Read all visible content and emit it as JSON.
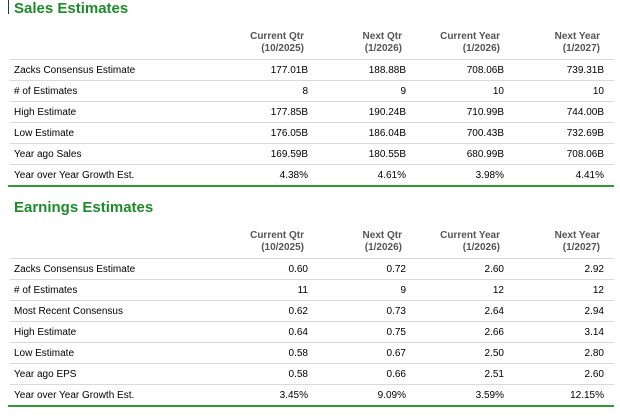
{
  "sales": {
    "title": "Sales Estimates",
    "headers": [
      {
        "line1": "Current Qtr",
        "line2": "(10/2025)"
      },
      {
        "line1": "Next Qtr",
        "line2": "(1/2026)"
      },
      {
        "line1": "Current Year",
        "line2": "(1/2026)"
      },
      {
        "line1": "Next Year",
        "line2": "(1/2027)"
      }
    ],
    "rows": [
      {
        "label": "Zacks Consensus Estimate",
        "values": [
          "177.01B",
          "188.88B",
          "708.06B",
          "739.31B"
        ]
      },
      {
        "label": "# of Estimates",
        "values": [
          "8",
          "9",
          "10",
          "10"
        ]
      },
      {
        "label": "High Estimate",
        "values": [
          "177.85B",
          "190.24B",
          "710.99B",
          "744.00B"
        ]
      },
      {
        "label": "Low Estimate",
        "values": [
          "176.05B",
          "186.04B",
          "700.43B",
          "732.69B"
        ]
      },
      {
        "label": "Year ago Sales",
        "values": [
          "169.59B",
          "180.55B",
          "680.99B",
          "708.06B"
        ]
      },
      {
        "label": "Year over Year Growth Est.",
        "values": [
          "4.38%",
          "4.61%",
          "3.98%",
          "4.41%"
        ]
      }
    ]
  },
  "earnings": {
    "title": "Earnings Estimates",
    "headers": [
      {
        "line1": "Current Qtr",
        "line2": "(10/2025)"
      },
      {
        "line1": "Next Qtr",
        "line2": "(1/2026)"
      },
      {
        "line1": "Current Year",
        "line2": "(1/2026)"
      },
      {
        "line1": "Next Year",
        "line2": "(1/2027)"
      }
    ],
    "rows": [
      {
        "label": "Zacks Consensus Estimate",
        "values": [
          "0.60",
          "0.72",
          "2.60",
          "2.92"
        ]
      },
      {
        "label": "# of Estimates",
        "values": [
          "11",
          "9",
          "12",
          "12"
        ]
      },
      {
        "label": "Most Recent Consensus",
        "values": [
          "0.62",
          "0.73",
          "2.64",
          "2.94"
        ]
      },
      {
        "label": "High Estimate",
        "values": [
          "0.64",
          "0.75",
          "2.66",
          "3.14"
        ]
      },
      {
        "label": "Low Estimate",
        "values": [
          "0.58",
          "0.67",
          "2.50",
          "2.80"
        ]
      },
      {
        "label": "Year ago EPS",
        "values": [
          "0.58",
          "0.66",
          "2.51",
          "2.60"
        ]
      },
      {
        "label": "Year over Year Growth Est.",
        "values": [
          "3.45%",
          "9.09%",
          "3.59%",
          "12.15%"
        ]
      }
    ]
  },
  "colors": {
    "accent": "#1e8a2c",
    "rule": "#2c9a37",
    "header_text": "#555555",
    "row_border": "#d9d9d9"
  }
}
